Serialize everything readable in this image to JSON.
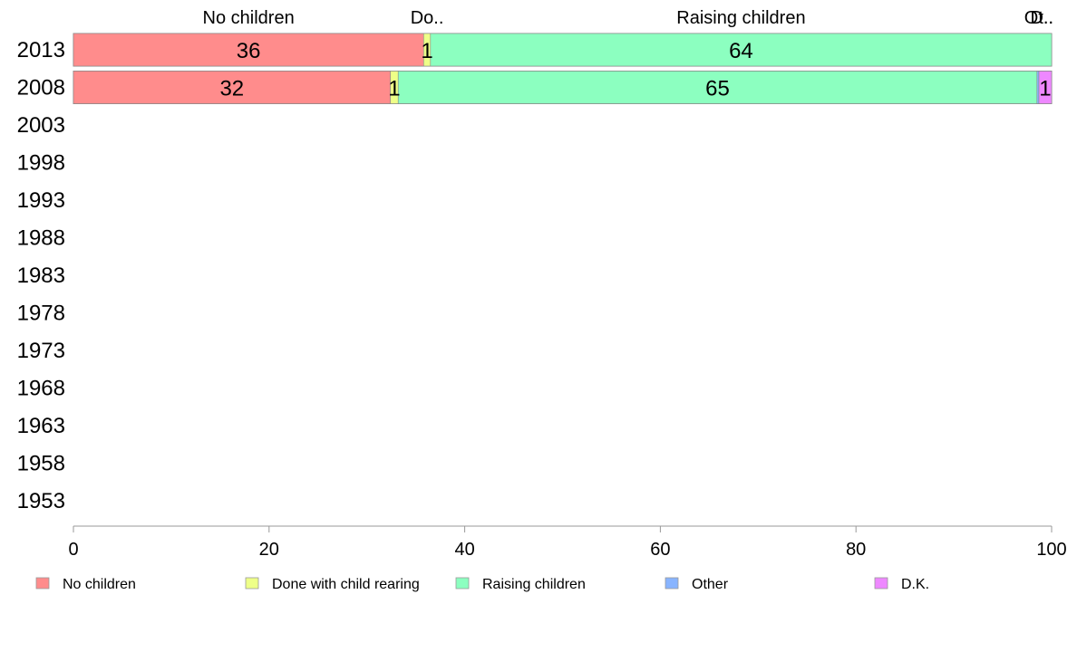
{
  "chart_data": {
    "type": "bar",
    "orientation": "horizontal",
    "stacked": true,
    "categories": [
      "2013",
      "2008",
      "2003",
      "1998",
      "1993",
      "1988",
      "1983",
      "1978",
      "1973",
      "1968",
      "1963",
      "1958",
      "1953"
    ],
    "series": [
      {
        "name": "No children",
        "color": "#FF8C8C",
        "values": [
          35.8,
          32.4,
          null,
          null,
          null,
          null,
          null,
          null,
          null,
          null,
          null,
          null,
          null
        ],
        "labels": [
          "36",
          "32",
          "",
          "",
          "",
          "",
          "",
          "",
          "",
          "",
          "",
          "",
          ""
        ]
      },
      {
        "name": "Done with child rearing",
        "color": "#EEFF88",
        "values": [
          0.7,
          0.8,
          null,
          null,
          null,
          null,
          null,
          null,
          null,
          null,
          null,
          null,
          null
        ],
        "labels": [
          "1",
          "1",
          "",
          "",
          "",
          "",
          "",
          "",
          "",
          "",
          "",
          "",
          ""
        ]
      },
      {
        "name": "Raising children",
        "color": "#8CFFC0",
        "values": [
          63.5,
          65.3,
          null,
          null,
          null,
          null,
          null,
          null,
          null,
          null,
          null,
          null,
          null
        ],
        "labels": [
          "64",
          "65",
          "",
          "",
          "",
          "",
          "",
          "",
          "",
          "",
          "",
          "",
          ""
        ]
      },
      {
        "name": "Other",
        "color": "#88B4FF",
        "values": [
          0.0,
          0.2,
          null,
          null,
          null,
          null,
          null,
          null,
          null,
          null,
          null,
          null,
          null
        ],
        "labels": [
          "",
          "",
          "",
          "",
          "",
          "",
          "",
          "",
          "",
          "",
          "",
          "",
          ""
        ]
      },
      {
        "name": "D.K.",
        "color": "#EE88FF",
        "values": [
          0.0,
          1.3,
          null,
          null,
          null,
          null,
          null,
          null,
          null,
          null,
          null,
          null,
          null
        ],
        "labels": [
          "",
          "1",
          "",
          "",
          "",
          "",
          "",
          "",
          "",
          "",
          "",
          "",
          ""
        ]
      }
    ],
    "top_labels": [
      "No children",
      "Do..",
      "Raising children",
      "Ot..",
      "D.."
    ],
    "xlim": [
      0,
      100
    ],
    "x_ticks": [
      0,
      20,
      40,
      60,
      80,
      100
    ],
    "title": "",
    "xlabel": "",
    "ylabel": "",
    "grid": false,
    "legend_position": "bottom"
  }
}
